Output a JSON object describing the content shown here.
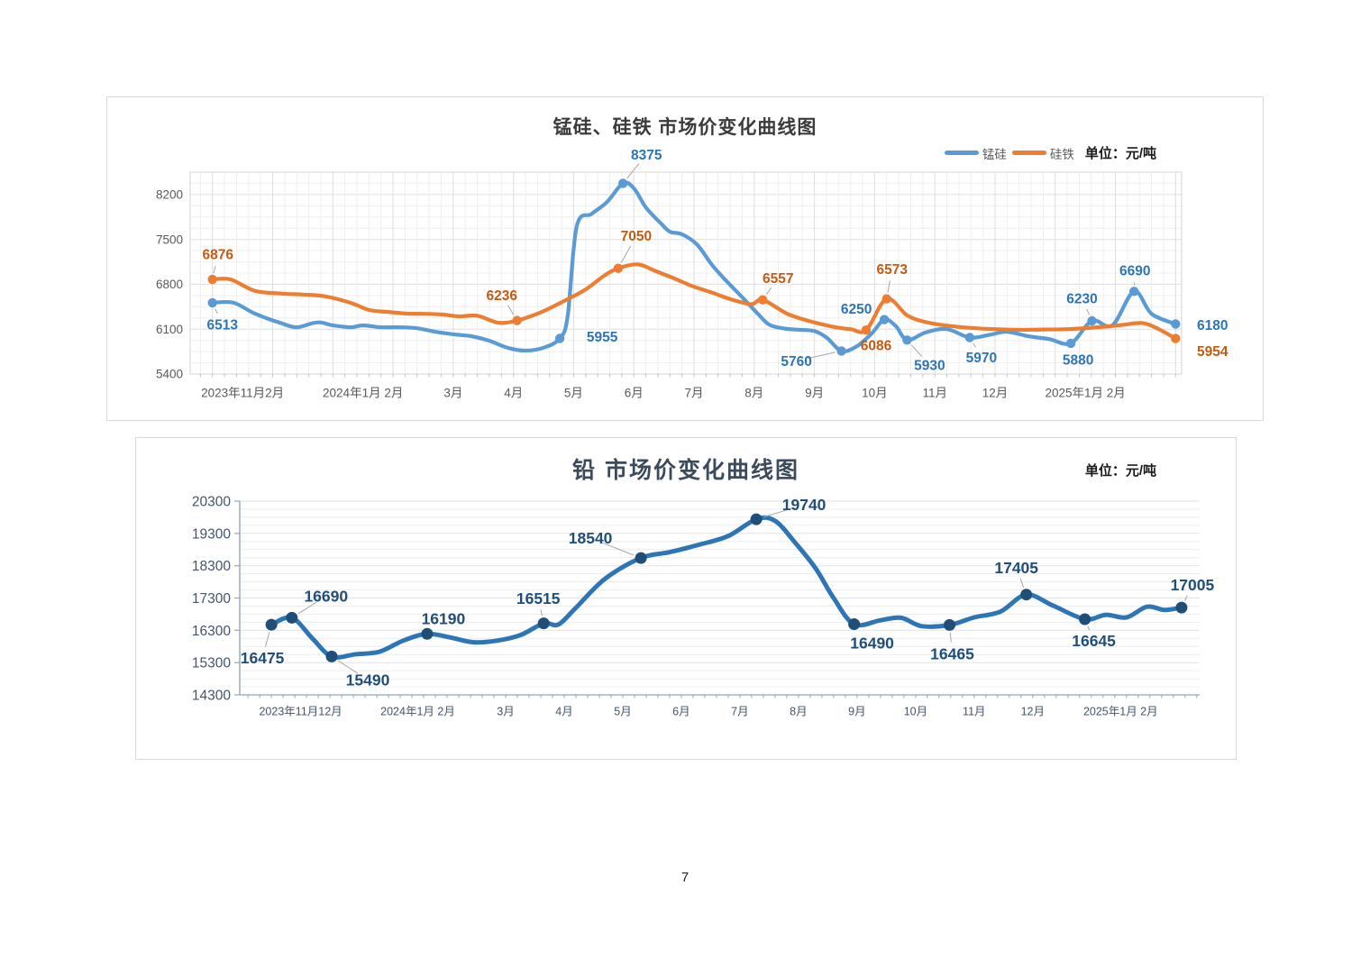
{
  "page": {
    "number": "7"
  },
  "chart_data": [
    {
      "type": "line",
      "title": "锰硅、硅铁 市场价变化曲线图",
      "unit_label": "单位：元/吨",
      "legend": [
        {
          "name": "锰硅",
          "color": "#5B9BD5"
        },
        {
          "name": "硅铁",
          "color": "#ED7D31"
        }
      ],
      "ylim": [
        5400,
        8550
      ],
      "yticks": [
        5400,
        6100,
        6800,
        7500,
        8200
      ],
      "xlim": [
        -0.37,
        16.1
      ],
      "xticks": [
        {
          "x": 0.5,
          "label": "2023年11月2月"
        },
        {
          "x": 2.5,
          "label": "2024年1月 2月"
        },
        {
          "x": 4,
          "label": "3月"
        },
        {
          "x": 5,
          "label": "4月"
        },
        {
          "x": 6,
          "label": "5月"
        },
        {
          "x": 7,
          "label": "6月"
        },
        {
          "x": 8,
          "label": "7月"
        },
        {
          "x": 9,
          "label": "8月"
        },
        {
          "x": 10,
          "label": "9月"
        },
        {
          "x": 11,
          "label": "10月"
        },
        {
          "x": 12,
          "label": "11月"
        },
        {
          "x": 13,
          "label": "12月"
        },
        {
          "x": 14.5,
          "label": "2025年1月 2月"
        }
      ],
      "grid": {
        "minor_x_step": 0.2,
        "minor_y_step": 175,
        "vertical": true
      },
      "series": [
        {
          "name": "锰硅",
          "color": "#5B9BD5",
          "label_color": "#2E75B6",
          "points": [
            [
              0,
              6513
            ],
            [
              0.35,
              6513
            ],
            [
              0.7,
              6345
            ],
            [
              1.15,
              6190
            ],
            [
              1.4,
              6130
            ],
            [
              1.65,
              6190
            ],
            [
              1.8,
              6205
            ],
            [
              2.0,
              6160
            ],
            [
              2.3,
              6130
            ],
            [
              2.5,
              6160
            ],
            [
              2.8,
              6130
            ],
            [
              3.1,
              6130
            ],
            [
              3.4,
              6115
            ],
            [
              3.7,
              6060
            ],
            [
              4.0,
              6020
            ],
            [
              4.3,
              5990
            ],
            [
              4.6,
              5920
            ],
            [
              4.9,
              5810
            ],
            [
              5.2,
              5765
            ],
            [
              5.5,
              5810
            ],
            [
              5.77,
              5955
            ],
            [
              5.9,
              6300
            ],
            [
              6.05,
              7700
            ],
            [
              6.3,
              7900
            ],
            [
              6.55,
              8080
            ],
            [
              6.82,
              8375
            ],
            [
              7.0,
              8300
            ],
            [
              7.2,
              8000
            ],
            [
              7.45,
              7750
            ],
            [
              7.6,
              7620
            ],
            [
              7.8,
              7580
            ],
            [
              8.05,
              7420
            ],
            [
              8.3,
              7100
            ],
            [
              8.55,
              6840
            ],
            [
              8.8,
              6600
            ],
            [
              9.05,
              6350
            ],
            [
              9.25,
              6170
            ],
            [
              9.5,
              6110
            ],
            [
              9.75,
              6090
            ],
            [
              10.0,
              6070
            ],
            [
              10.2,
              5970
            ],
            [
              10.45,
              5760
            ],
            [
              10.7,
              5830
            ],
            [
              10.95,
              6030
            ],
            [
              11.16,
              6250
            ],
            [
              11.35,
              6150
            ],
            [
              11.54,
              5930
            ],
            [
              11.85,
              6050
            ],
            [
              12.2,
              6100
            ],
            [
              12.58,
              5970
            ],
            [
              12.9,
              6010
            ],
            [
              13.2,
              6060
            ],
            [
              13.55,
              5990
            ],
            [
              13.9,
              5945
            ],
            [
              14.26,
              5880
            ],
            [
              14.61,
              6230
            ],
            [
              14.95,
              6160
            ],
            [
              15.31,
              6690
            ],
            [
              15.6,
              6340
            ],
            [
              16,
              6180
            ]
          ],
          "labels": [
            {
              "x": 0,
              "v": 6513,
              "dx": 11,
              "dy": 24,
              "leader": true
            },
            {
              "x": 5.77,
              "v": 5955,
              "dx": 47,
              "dy": -2,
              "leader": false
            },
            {
              "x": 6.82,
              "v": 8375,
              "dx": 26,
              "dy": -32,
              "leader": true
            },
            {
              "x": 10.45,
              "v": 5760,
              "dx": -50,
              "dy": 11,
              "leader": true
            },
            {
              "x": 11.16,
              "v": 6250,
              "dx": -31,
              "dy": -12,
              "leader": false
            },
            {
              "x": 11.54,
              "v": 5930,
              "dx": 25,
              "dy": 28,
              "leader": true
            },
            {
              "x": 12.58,
              "v": 5970,
              "dx": 13,
              "dy": 22,
              "leader": true
            },
            {
              "x": 14.26,
              "v": 5880,
              "dx": 8,
              "dy": 18,
              "leader": false
            },
            {
              "x": 14.61,
              "v": 6230,
              "dx": -11,
              "dy": -25,
              "leader": true
            },
            {
              "x": 15.31,
              "v": 6690,
              "dx": 1,
              "dy": -23,
              "leader": true
            },
            {
              "x": 16,
              "v": 6180,
              "dx": 41,
              "dy": 1,
              "leader": false
            }
          ]
        },
        {
          "name": "硅铁",
          "color": "#ED7D31",
          "label_color": "#C55A11",
          "points": [
            [
              0,
              6876
            ],
            [
              0.3,
              6876
            ],
            [
              0.7,
              6700
            ],
            [
              1.15,
              6655
            ],
            [
              1.5,
              6640
            ],
            [
              1.85,
              6615
            ],
            [
              2.3,
              6510
            ],
            [
              2.6,
              6400
            ],
            [
              2.9,
              6370
            ],
            [
              3.2,
              6345
            ],
            [
              3.5,
              6340
            ],
            [
              3.8,
              6330
            ],
            [
              4.1,
              6300
            ],
            [
              4.4,
              6310
            ],
            [
              4.75,
              6200
            ],
            [
              5.06,
              6236
            ],
            [
              5.45,
              6360
            ],
            [
              5.8,
              6520
            ],
            [
              6.2,
              6720
            ],
            [
              6.5,
              6930
            ],
            [
              6.74,
              7050
            ],
            [
              7.07,
              7110
            ],
            [
              7.35,
              7010
            ],
            [
              7.65,
              6900
            ],
            [
              7.95,
              6780
            ],
            [
              8.3,
              6670
            ],
            [
              8.6,
              6570
            ],
            [
              8.95,
              6490
            ],
            [
              9.14,
              6557
            ],
            [
              9.55,
              6340
            ],
            [
              9.9,
              6230
            ],
            [
              10.3,
              6140
            ],
            [
              10.6,
              6100
            ],
            [
              10.86,
              6086
            ],
            [
              11.2,
              6573
            ],
            [
              11.55,
              6310
            ],
            [
              11.9,
              6200
            ],
            [
              12.25,
              6150
            ],
            [
              12.6,
              6120
            ],
            [
              13,
              6100
            ],
            [
              13.4,
              6090
            ],
            [
              13.8,
              6095
            ],
            [
              14.2,
              6100
            ],
            [
              14.7,
              6130
            ],
            [
              15.1,
              6165
            ],
            [
              15.45,
              6195
            ],
            [
              15.7,
              6110
            ],
            [
              16,
              5954
            ]
          ],
          "labels": [
            {
              "x": 0,
              "v": 6876,
              "dx": 6,
              "dy": -28,
              "leader": true
            },
            {
              "x": 5.06,
              "v": 6236,
              "dx": -17,
              "dy": -28,
              "leader": true
            },
            {
              "x": 6.74,
              "v": 7050,
              "dx": 20,
              "dy": -36,
              "leader": true
            },
            {
              "x": 9.14,
              "v": 6557,
              "dx": 17,
              "dy": -24,
              "leader": true
            },
            {
              "x": 10.86,
              "v": 6086,
              "dx": 11,
              "dy": 17,
              "leader": false
            },
            {
              "x": 11.2,
              "v": 6573,
              "dx": 6,
              "dy": -33,
              "leader": true
            },
            {
              "x": 16,
              "v": 5954,
              "dx": 41,
              "dy": 14,
              "leader": false
            }
          ]
        }
      ]
    },
    {
      "type": "line",
      "title": "铅 市场价变化曲线图",
      "unit_label": "单位：元/吨",
      "legend": [],
      "ylim": [
        14300,
        20300
      ],
      "yticks": [
        14300,
        15300,
        16300,
        17300,
        18300,
        19300,
        20300
      ],
      "xlim": [
        -0.54,
        15.85
      ],
      "xticks": [
        {
          "x": 0.5,
          "label": "2023年11月12月"
        },
        {
          "x": 2.5,
          "label": "2024年1月 2月"
        },
        {
          "x": 4,
          "label": "3月"
        },
        {
          "x": 5,
          "label": "4月"
        },
        {
          "x": 6,
          "label": "5月"
        },
        {
          "x": 7,
          "label": "6月"
        },
        {
          "x": 8,
          "label": "7月"
        },
        {
          "x": 9,
          "label": "8月"
        },
        {
          "x": 10,
          "label": "9月"
        },
        {
          "x": 11,
          "label": "10月"
        },
        {
          "x": 12,
          "label": "11月"
        },
        {
          "x": 13,
          "label": "12月"
        },
        {
          "x": 14.5,
          "label": "2025年1月 2月"
        }
      ],
      "grid": {
        "minor_y_step": 250,
        "vertical": false
      },
      "series": [
        {
          "name": "铅",
          "color": "#2E75B6",
          "marker_color": "#1F4E79",
          "label_color": "#1F4E79",
          "points": [
            [
              0,
              16475
            ],
            [
              0.35,
              16690
            ],
            [
              0.7,
              16050
            ],
            [
              1.03,
              15490
            ],
            [
              1.45,
              15560
            ],
            [
              1.85,
              15640
            ],
            [
              2.25,
              15980
            ],
            [
              2.66,
              16190
            ],
            [
              3.05,
              16080
            ],
            [
              3.45,
              15930
            ],
            [
              3.85,
              15980
            ],
            [
              4.25,
              16150
            ],
            [
              4.65,
              16515
            ],
            [
              4.9,
              16480
            ],
            [
              5.2,
              17000
            ],
            [
              5.7,
              17900
            ],
            [
              6.31,
              18540
            ],
            [
              6.8,
              18720
            ],
            [
              7.3,
              18950
            ],
            [
              7.8,
              19220
            ],
            [
              8.28,
              19740
            ],
            [
              8.6,
              19690
            ],
            [
              8.95,
              19000
            ],
            [
              9.3,
              18200
            ],
            [
              9.6,
              17300
            ],
            [
              9.95,
              16490
            ],
            [
              10.4,
              16610
            ],
            [
              10.75,
              16690
            ],
            [
              11.1,
              16430
            ],
            [
              11.58,
              16465
            ],
            [
              12.0,
              16700
            ],
            [
              12.45,
              16880
            ],
            [
              12.89,
              17405
            ],
            [
              13.35,
              17060
            ],
            [
              13.89,
              16645
            ],
            [
              14.25,
              16780
            ],
            [
              14.6,
              16700
            ],
            [
              14.95,
              17030
            ],
            [
              15.25,
              16930
            ],
            [
              15.54,
              17005
            ]
          ],
          "labels": [
            {
              "x": 0,
              "v": 16475,
              "dx": -10,
              "dy": 37,
              "leader": true
            },
            {
              "x": 0.35,
              "v": 16690,
              "dx": 38,
              "dy": -24,
              "leader": true
            },
            {
              "x": 1.03,
              "v": 15490,
              "dx": 40,
              "dy": 26,
              "leader": true
            },
            {
              "x": 2.66,
              "v": 16190,
              "dx": 18,
              "dy": -17,
              "leader": false
            },
            {
              "x": 4.65,
              "v": 16515,
              "dx": -6,
              "dy": -28,
              "leader": true
            },
            {
              "x": 6.31,
              "v": 18540,
              "dx": -56,
              "dy": -22,
              "leader": true
            },
            {
              "x": 8.28,
              "v": 19740,
              "dx": 53,
              "dy": -16,
              "leader": true
            },
            {
              "x": 9.95,
              "v": 16490,
              "dx": 20,
              "dy": 21,
              "leader": false
            },
            {
              "x": 11.58,
              "v": 16465,
              "dx": 3,
              "dy": 32,
              "leader": true
            },
            {
              "x": 12.89,
              "v": 17405,
              "dx": -11,
              "dy": -30,
              "leader": true
            },
            {
              "x": 13.89,
              "v": 16645,
              "dx": 10,
              "dy": 24,
              "leader": true
            },
            {
              "x": 15.54,
              "v": 17005,
              "dx": 12,
              "dy": -25,
              "leader": true
            }
          ]
        }
      ]
    }
  ]
}
